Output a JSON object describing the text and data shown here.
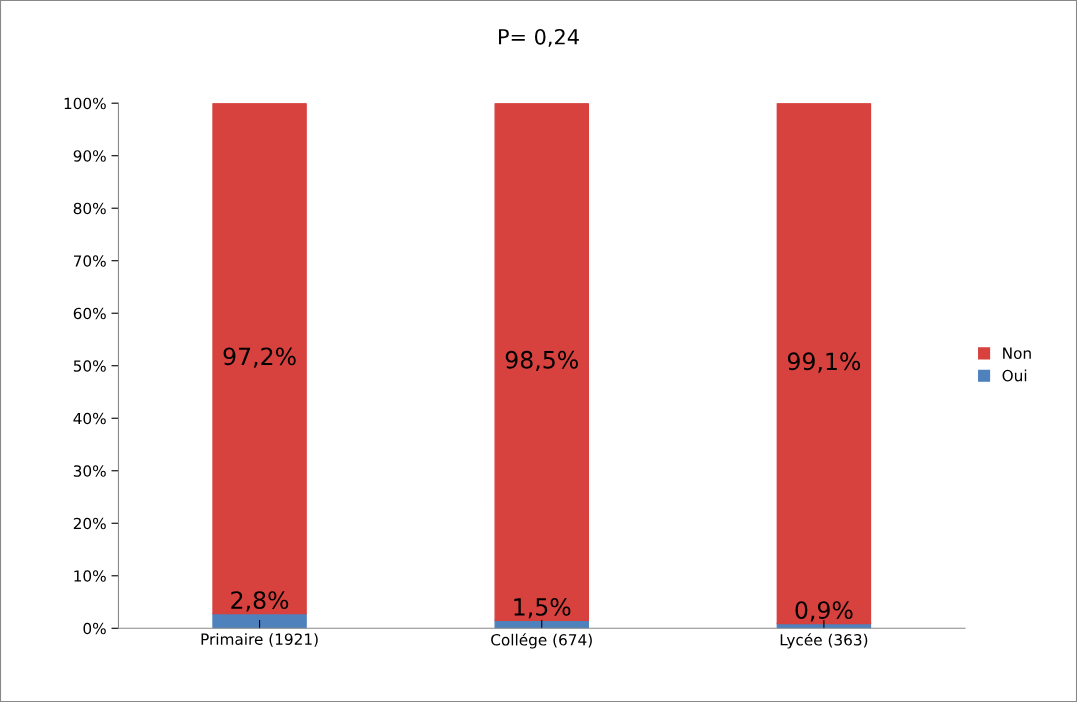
{
  "chart_data": {
    "type": "bar",
    "stacked": true,
    "title": "P= 0,24",
    "categories": [
      "Primaire (1921)",
      "Collége (674)",
      "Lycée (363)"
    ],
    "series": [
      {
        "name": "Oui",
        "color": "#4f81bd",
        "values": [
          2.8,
          1.5,
          0.9
        ],
        "value_labels": [
          "2,8%",
          "1,5%",
          "0,9%"
        ]
      },
      {
        "name": "Non",
        "color": "#d7413e",
        "values": [
          97.2,
          98.5,
          99.1
        ],
        "value_labels": [
          "97,2%",
          "98,5%",
          "99,1%"
        ]
      }
    ],
    "ylim": [
      0,
      100
    ],
    "yticks": [
      {
        "value": 0,
        "label": "0%"
      },
      {
        "value": 10,
        "label": "10%"
      },
      {
        "value": 20,
        "label": "20%"
      },
      {
        "value": 30,
        "label": "30%"
      },
      {
        "value": 40,
        "label": "40%"
      },
      {
        "value": 50,
        "label": "50%"
      },
      {
        "value": 60,
        "label": "60%"
      },
      {
        "value": 70,
        "label": "70%"
      },
      {
        "value": 80,
        "label": "80%"
      },
      {
        "value": 90,
        "label": "90%"
      },
      {
        "value": 100,
        "label": "100%"
      }
    ],
    "grid": false,
    "legend": "right"
  }
}
